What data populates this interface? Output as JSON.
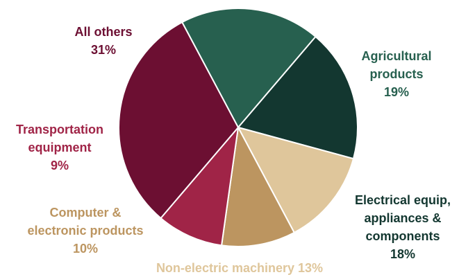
{
  "chart_data": {
    "type": "pie",
    "title": "",
    "slices": [
      {
        "id": "agricultural",
        "label_lines": [
          "Agricultural",
          "products",
          "19%"
        ],
        "value": 19,
        "color": "#27604f",
        "label_color": "#27604f"
      },
      {
        "id": "electrical",
        "label_lines": [
          "Electrical equip,",
          "appliances &",
          "components",
          "18%"
        ],
        "value": 18,
        "color": "#133730",
        "label_color": "#133730"
      },
      {
        "id": "non-electric",
        "label_lines": [
          "Non-electric machinery 13%"
        ],
        "value": 13,
        "color": "#dfc69b",
        "label_color": "#dfc69b"
      },
      {
        "id": "computer",
        "label_lines": [
          "Computer &",
          "electronic products",
          "10%"
        ],
        "value": 10,
        "color": "#bc9560",
        "label_color": "#bc9560"
      },
      {
        "id": "transportation",
        "label_lines": [
          "Transportation",
          "equipment",
          "9%"
        ],
        "value": 9,
        "color": "#a02447",
        "label_color": "#a02447"
      },
      {
        "id": "all-others",
        "label_lines": [
          "All others",
          "31%"
        ],
        "value": 31,
        "color": "#6c0f32",
        "label_color": "#6c0f32"
      }
    ]
  }
}
